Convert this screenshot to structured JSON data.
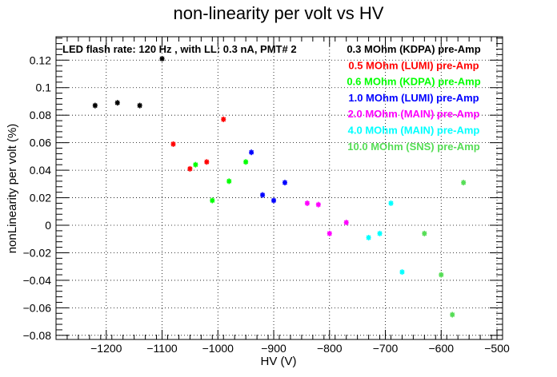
{
  "chart_data": {
    "type": "scatter",
    "title": "non-linearity per volt vs HV",
    "xlabel": "HV (V)",
    "ylabel": "nonLinearity per volt (%)",
    "xlim": [
      -1290,
      -490
    ],
    "ylim": [
      -0.083,
      0.137
    ],
    "x_ticks": [
      -1200,
      -1100,
      -1000,
      -900,
      -800,
      -700,
      -600,
      -500
    ],
    "x_tick_labels": [
      "−1200",
      "−1100",
      "−1000",
      "−900",
      "−800",
      "−700",
      "−600",
      "−500"
    ],
    "y_ticks": [
      -0.08,
      -0.06,
      -0.04,
      -0.02,
      0,
      0.02,
      0.04,
      0.06,
      0.08,
      0.1,
      0.12
    ],
    "y_tick_labels": [
      "−0.08",
      "−0.06",
      "−0.04",
      "−0.02",
      "0",
      "0.02",
      "0.04",
      "0.06",
      "0.08",
      "0.1",
      "0.12"
    ],
    "grid": true,
    "annotation": "LED flash rate: 120 Hz , with LL: 0.3 nA, PMT# 2",
    "legend_position": "top-right",
    "series": [
      {
        "name": "0.3 MOhm (KDPA) pre-Amp",
        "color": "#000000",
        "x": [
          -1220,
          -1180,
          -1140,
          -1100
        ],
        "y": [
          0.087,
          0.089,
          0.087,
          0.121
        ]
      },
      {
        "name": "0.5 MOhm (LUMI) pre-Amp",
        "color": "#ff0000",
        "x": [
          -1080,
          -1050,
          -1020,
          -990
        ],
        "y": [
          0.059,
          0.041,
          0.046,
          0.077
        ]
      },
      {
        "name": "0.6 MOhm (KDPA) pre-Amp",
        "color": "#00ff00",
        "x": [
          -1040,
          -1010,
          -980,
          -950
        ],
        "y": [
          0.044,
          0.018,
          0.032,
          0.046
        ]
      },
      {
        "name": "1.0 MOhm (LUMI) pre-Amp",
        "color": "#0000ff",
        "x": [
          -940,
          -920,
          -900,
          -880
        ],
        "y": [
          0.053,
          0.022,
          0.018,
          0.031
        ]
      },
      {
        "name": "2.0 MOhm (MAIN) pre-Amp",
        "color": "#ff00ff",
        "x": [
          -840,
          -820,
          -800,
          -770
        ],
        "y": [
          0.016,
          0.015,
          -0.006,
          0.002
        ]
      },
      {
        "name": "4.0 MOhm (MAIN) pre-Amp",
        "color": "#00ffff",
        "x": [
          -730,
          -710,
          -690,
          -670
        ],
        "y": [
          -0.009,
          -0.006,
          0.016,
          -0.034
        ]
      },
      {
        "name": "10.0 MOhm (SNS) pre-Amp",
        "color": "#55dd55",
        "x": [
          -630,
          -600,
          -580,
          -560
        ],
        "y": [
          -0.006,
          -0.036,
          -0.065,
          0.031
        ]
      }
    ]
  }
}
